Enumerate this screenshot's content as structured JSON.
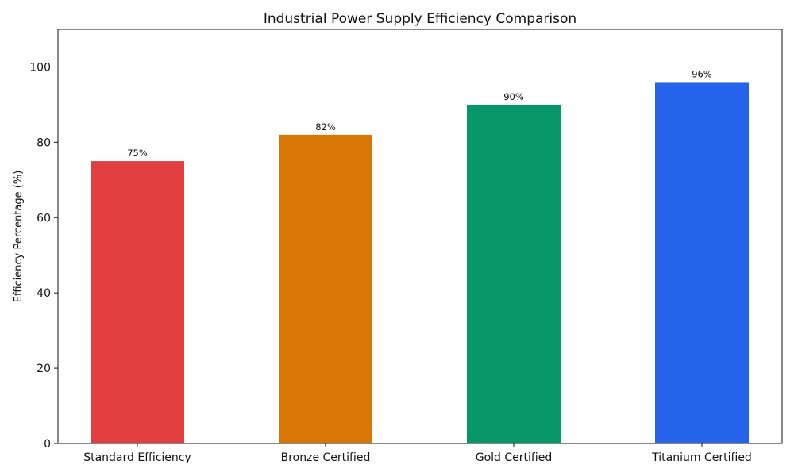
{
  "chart_data": {
    "type": "bar",
    "title": "Industrial Power Supply Efficiency Comparison",
    "xlabel": "",
    "ylabel": "Efficiency Percentage (%)",
    "categories": [
      "Standard Efficiency",
      "Bronze Certified",
      "Gold Certified",
      "Titanium Certified"
    ],
    "values": [
      75,
      82,
      90,
      96
    ],
    "data_labels": [
      "75%",
      "82%",
      "90%",
      "96%"
    ],
    "colors": [
      "#e33e3f",
      "#d97706",
      "#069669",
      "#2563eb"
    ],
    "ylim": [
      0,
      110
    ],
    "yticks": [
      0,
      20,
      40,
      60,
      80,
      100
    ],
    "grid": false,
    "legend": "none"
  }
}
